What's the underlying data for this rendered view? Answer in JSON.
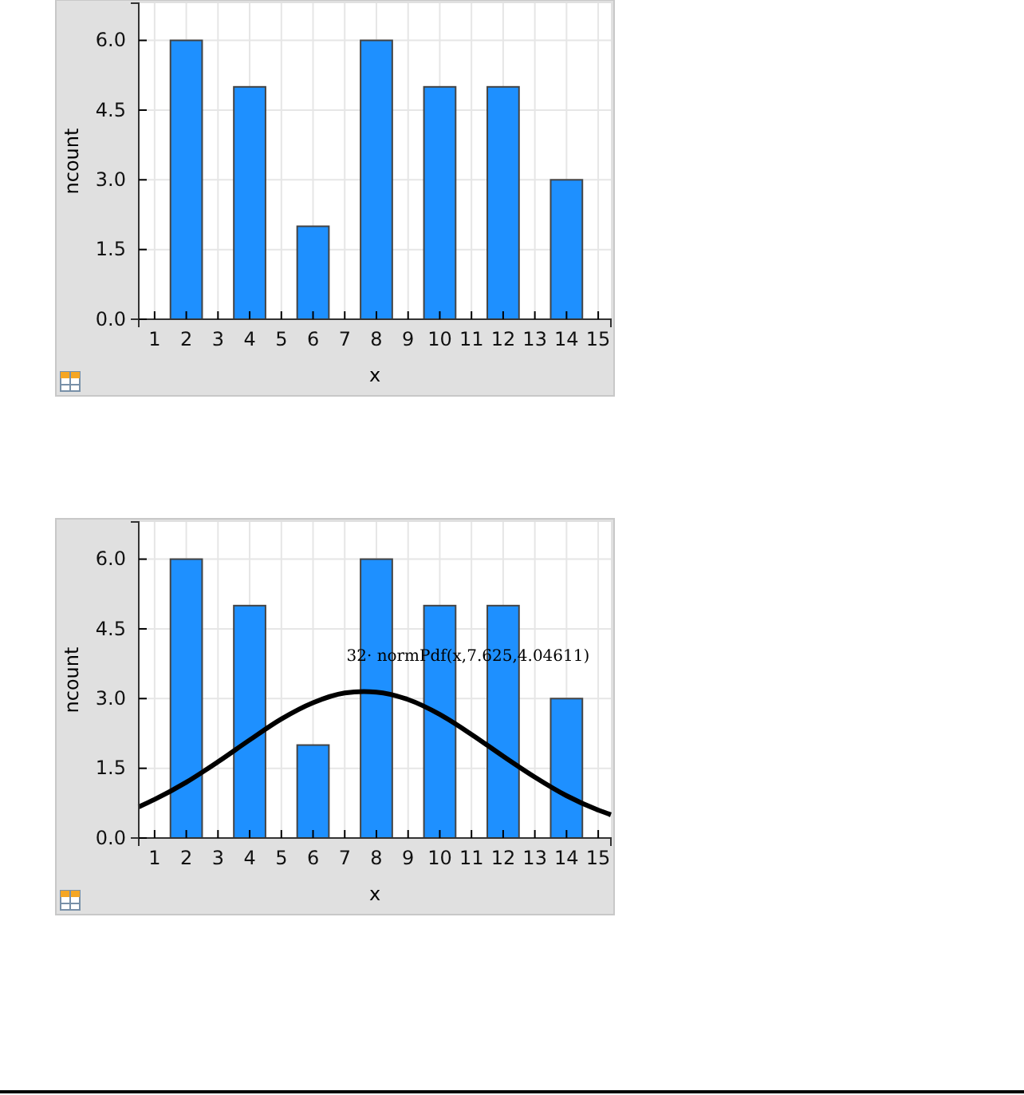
{
  "chart_data": [
    {
      "type": "bar",
      "xlabel": "x",
      "ylabel": "ncount",
      "x": [
        2,
        4,
        6,
        8,
        10,
        12,
        14
      ],
      "xlim": [
        0.5,
        15.4
      ],
      "xticks": [
        1,
        2,
        3,
        4,
        5,
        6,
        7,
        8,
        9,
        10,
        11,
        12,
        13,
        14,
        15
      ],
      "ylim": [
        0,
        6.8
      ],
      "yticks": [
        {
          "value": 0,
          "label": "0.0"
        },
        {
          "value": 1.5,
          "label": "1.5"
        },
        {
          "value": 3,
          "label": "3.0"
        },
        {
          "value": 4.5,
          "label": "4.5"
        },
        {
          "value": 6,
          "label": "6.0"
        }
      ],
      "grid": true,
      "series": [
        {
          "color": "#1e90ff",
          "values": [
            6,
            5,
            2,
            6,
            5,
            5,
            3
          ]
        }
      ]
    },
    {
      "type": "bar",
      "xlabel": "x",
      "ylabel": "ncount",
      "x": [
        2,
        4,
        6,
        8,
        10,
        12,
        14
      ],
      "xlim": [
        0.5,
        15.4
      ],
      "xticks": [
        1,
        2,
        3,
        4,
        5,
        6,
        7,
        8,
        9,
        10,
        11,
        12,
        13,
        14,
        15
      ],
      "ylim": [
        0,
        6.8
      ],
      "yticks": [
        {
          "value": 0,
          "label": "0.0"
        },
        {
          "value": 1.5,
          "label": "1.5"
        },
        {
          "value": 3,
          "label": "3.0"
        },
        {
          "value": 4.5,
          "label": "4.5"
        },
        {
          "value": 6,
          "label": "6.0"
        }
      ],
      "grid": true,
      "annotations": [
        "32· normPdf(x,7.625,4.04611)"
      ],
      "series": [
        {
          "color": "#1e90ff",
          "values": [
            6,
            5,
            2,
            6,
            5,
            5,
            3
          ]
        },
        {
          "type": "line",
          "color": "#000000",
          "x": [
            0.5,
            1,
            2,
            3,
            4,
            5,
            6,
            7,
            7.6,
            8,
            9,
            10,
            11,
            12,
            13,
            14,
            15,
            15.4
          ],
          "values": [
            0.67,
            0.83,
            1.2,
            1.64,
            2.11,
            2.56,
            2.91,
            3.12,
            3.15,
            3.14,
            2.98,
            2.66,
            2.23,
            1.76,
            1.31,
            0.91,
            0.6,
            0.5
          ]
        }
      ]
    }
  ]
}
